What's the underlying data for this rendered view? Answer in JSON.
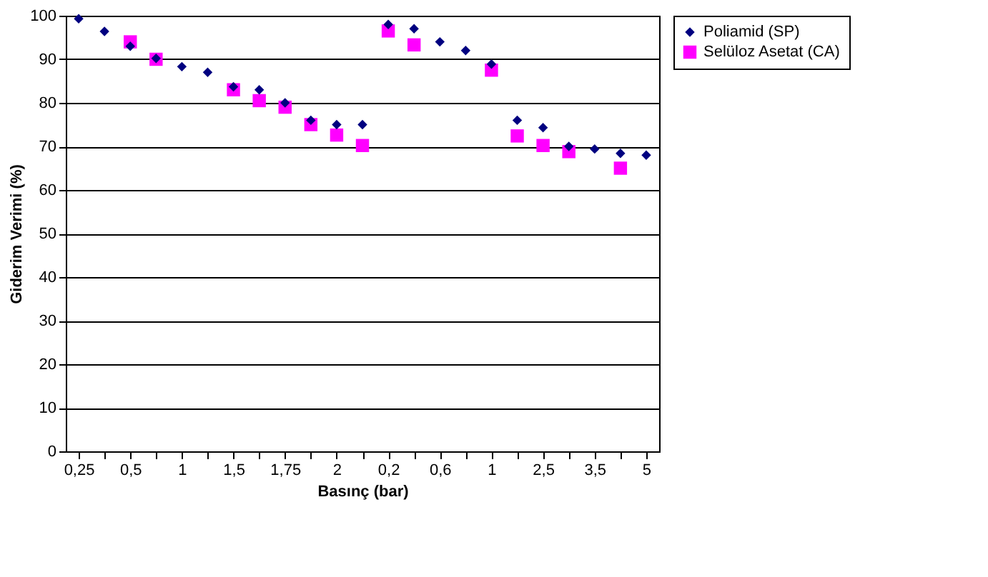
{
  "chart_data": {
    "type": "scatter",
    "xlabel": "Basınç (bar)",
    "ylabel": "Giderim Verimi (%)",
    "categories": [
      "0,25",
      null,
      "0,5",
      null,
      "1",
      null,
      "1,5",
      null,
      "1,75",
      null,
      "2",
      null,
      "0,2",
      null,
      "0,6",
      null,
      "1",
      null,
      "2,5",
      null,
      "3,5",
      null,
      "5"
    ],
    "series": [
      {
        "name": "Poliamid (SP)",
        "color": "#000080",
        "marker": "diamond",
        "values": [
          99.3,
          96.4,
          93,
          90.2,
          88.3,
          87,
          83.7,
          83,
          80,
          76,
          75,
          75,
          98,
          97,
          94,
          92,
          88.9,
          76,
          74.3,
          70,
          69.4,
          68.4,
          68
        ]
      },
      {
        "name": "Selüloz Asetat (CA)",
        "color": "#ff00ff",
        "marker": "square",
        "values": [
          null,
          null,
          94,
          90,
          null,
          null,
          83,
          80.5,
          79,
          75,
          72.6,
          70.2,
          96.5,
          93.3,
          null,
          null,
          87.5,
          72.4,
          70.2,
          68.8,
          null,
          65,
          null
        ]
      }
    ],
    "ylim": [
      0,
      100
    ],
    "yticks": [
      0,
      10,
      20,
      30,
      40,
      50,
      60,
      70,
      80,
      90,
      100
    ],
    "grid": "y",
    "legend": "right"
  }
}
